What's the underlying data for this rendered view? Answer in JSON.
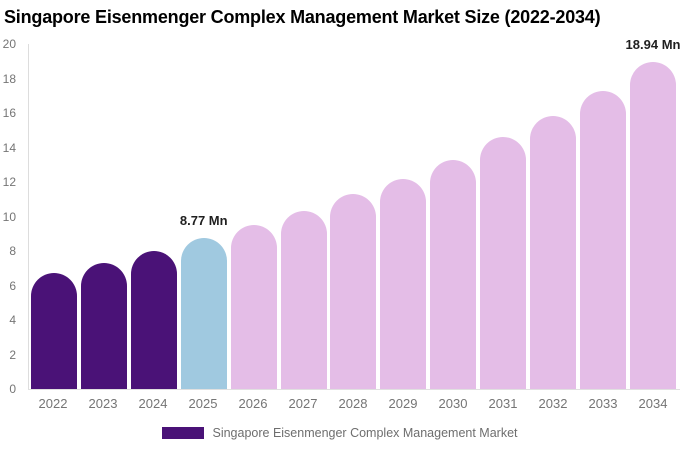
{
  "title": "Singapore Eisenmenger Complex Management Market Size (2022-2034)",
  "legend": {
    "label": "Singapore Eisenmenger Complex Management Market",
    "swatch_color": "#4A1277"
  },
  "colors": {
    "historical": "#4A1277",
    "base_year": "#A0C9E0",
    "forecast": "#E4BDE7",
    "axis_line": "#dddddd",
    "tick_text": "#757575",
    "point_label_text": "#1f1f1f",
    "title_text": "#000000"
  },
  "chart_data": {
    "type": "bar",
    "title": "Singapore Eisenmenger Complex Management Market Size (2022-2034)",
    "categories": [
      "2022",
      "2023",
      "2024",
      "2025",
      "2026",
      "2027",
      "2028",
      "2029",
      "2030",
      "2031",
      "2032",
      "2033",
      "2034"
    ],
    "values": [
      6.7,
      7.3,
      8.0,
      8.77,
      9.5,
      10.3,
      11.3,
      12.2,
      13.3,
      14.6,
      15.8,
      17.3,
      18.94
    ],
    "segments": [
      "historical",
      "historical",
      "historical",
      "base_year",
      "forecast",
      "forecast",
      "forecast",
      "forecast",
      "forecast",
      "forecast",
      "forecast",
      "forecast",
      "forecast"
    ],
    "point_labels": {
      "2025": "8.77 Mn",
      "2034": "18.94 Mn"
    },
    "unit": "Mn",
    "xlabel": "",
    "ylabel": "",
    "ylim": [
      0,
      20
    ],
    "ytick_step": 2,
    "grid": false,
    "legend_position": "bottom",
    "legend_entries": [
      "Singapore Eisenmenger Complex Management Market"
    ]
  }
}
